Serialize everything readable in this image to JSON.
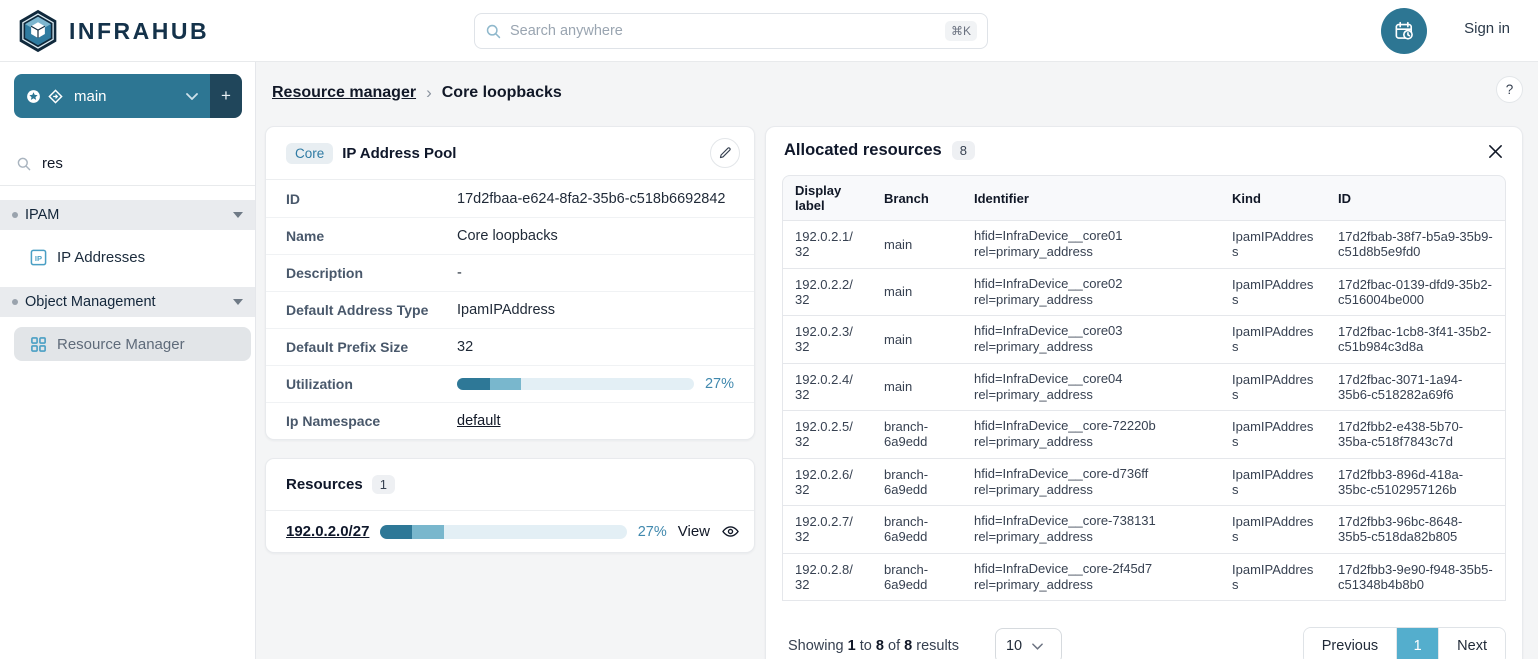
{
  "brand": {
    "name": "INFRAHUB"
  },
  "topbar": {
    "search_placeholder": "Search anywhere",
    "search_shortcut": "⌘K",
    "sign_in_label": "Sign in"
  },
  "sidebar": {
    "branch_selector": {
      "current_branch": "main",
      "add_label": "+"
    },
    "filter_input_value": "res",
    "sections": [
      {
        "label": "IPAM"
      },
      {
        "label": "Object Management"
      }
    ],
    "items": [
      {
        "label": "IP Addresses"
      },
      {
        "label": "Resource Manager"
      }
    ]
  },
  "breadcrumb": {
    "parent": "Resource manager",
    "separator": "›",
    "current": "Core loopbacks",
    "help_label": "?"
  },
  "pool_card": {
    "kind_badge": "Core",
    "title": "IP Address Pool",
    "fields": [
      {
        "label": "ID",
        "value": "17d2fbaa-e624-8fa2-35b6-c518b6692842"
      },
      {
        "label": "Name",
        "value": "Core loopbacks"
      },
      {
        "label": "Description",
        "value": "-"
      },
      {
        "label": "Default Address Type",
        "value": "IpamIPAddress"
      },
      {
        "label": "Default Prefix Size",
        "value": "32"
      }
    ],
    "utilization": {
      "label": "Utilization",
      "percent_label": "27%",
      "dark_pct": 14,
      "light_pct": 13
    },
    "namespace": {
      "label": "Ip Namespace",
      "value": "default"
    }
  },
  "resources_card": {
    "title": "Resources",
    "count": "1",
    "item": {
      "prefix": "192.0.2.0/27",
      "percent_label": "27%",
      "dark_pct": 13,
      "light_pct": 13,
      "view_label": "View"
    }
  },
  "allocated": {
    "title": "Allocated resources",
    "count": "8",
    "columns": [
      "Display label",
      "Branch",
      "Identifier",
      "Kind",
      "ID"
    ],
    "rows": [
      {
        "display": "192.0.2.1/32",
        "branch": "main",
        "hfid": "hfid=InfraDevice__core01",
        "rel": "rel=primary_address",
        "kind": "IpamIPAddress",
        "id": "17d2fbab-38f7-b5a9-35b9-c51d8b5e9fd0"
      },
      {
        "display": "192.0.2.2/32",
        "branch": "main",
        "hfid": "hfid=InfraDevice__core02",
        "rel": "rel=primary_address",
        "kind": "IpamIPAddress",
        "id": "17d2fbac-0139-dfd9-35b2-c516004be000"
      },
      {
        "display": "192.0.2.3/32",
        "branch": "main",
        "hfid": "hfid=InfraDevice__core03",
        "rel": "rel=primary_address",
        "kind": "IpamIPAddress",
        "id": "17d2fbac-1cb8-3f41-35b2-c51b984c3d8a"
      },
      {
        "display": "192.0.2.4/32",
        "branch": "main",
        "hfid": "hfid=InfraDevice__core04",
        "rel": "rel=primary_address",
        "kind": "IpamIPAddress",
        "id": "17d2fbac-3071-1a94-35b6-c518282a69f6"
      },
      {
        "display": "192.0.2.5/32",
        "branch": "branch-6a9edd",
        "hfid": "hfid=InfraDevice__core-72220b",
        "rel": "rel=primary_address",
        "kind": "IpamIPAddress",
        "id": "17d2fbb2-e438-5b70-35ba-c518f7843c7d"
      },
      {
        "display": "192.0.2.6/32",
        "branch": "branch-6a9edd",
        "hfid": "hfid=InfraDevice__core-d736ff",
        "rel": "rel=primary_address",
        "kind": "IpamIPAddress",
        "id": "17d2fbb3-896d-418a-35bc-c5102957126b"
      },
      {
        "display": "192.0.2.7/32",
        "branch": "branch-6a9edd",
        "hfid": "hfid=InfraDevice__core-738131",
        "rel": "rel=primary_address",
        "kind": "IpamIPAddress",
        "id": "17d2fbb3-96bc-8648-35b5-c518da82b805"
      },
      {
        "display": "192.0.2.8/32",
        "branch": "branch-6a9edd",
        "hfid": "hfid=InfraDevice__core-2f45d7",
        "rel": "rel=primary_address",
        "kind": "IpamIPAddress",
        "id": "17d2fbb3-9e90-f948-35b5-c51348b4b8b0"
      }
    ],
    "footer": {
      "showing_word": "Showing",
      "from": "1",
      "to_word": "to",
      "to": "8",
      "of_word": "of",
      "total": "8",
      "results_word": "results",
      "page_size": "10",
      "previous_label": "Previous",
      "page_label": "1",
      "next_label": "Next"
    }
  },
  "colors": {
    "teal": "#2d7693",
    "navy": "#14324a",
    "accent_blue": "#4189ae",
    "active_page": "#54aecd",
    "icon_blue": "#4a9fc4"
  }
}
